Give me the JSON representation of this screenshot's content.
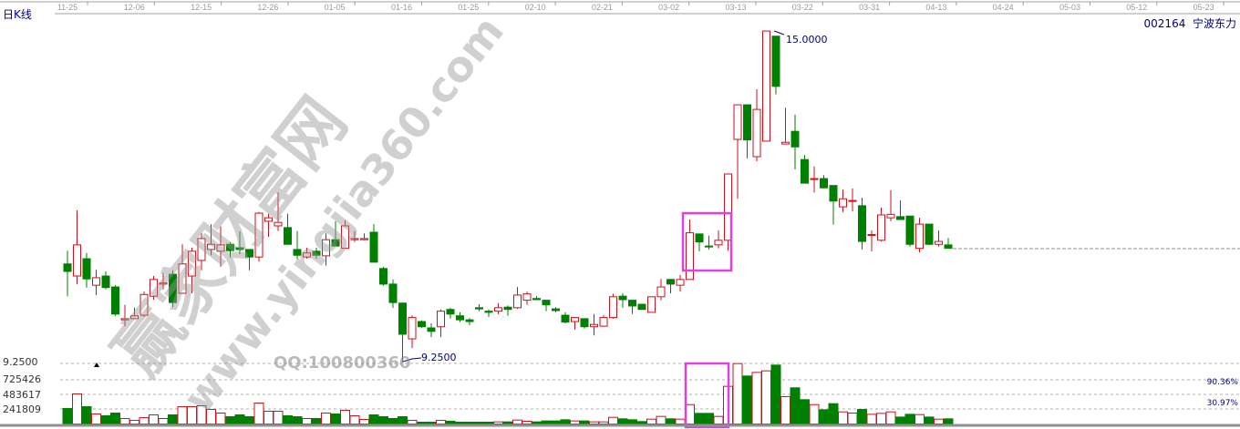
{
  "header": {
    "period_label": "日K线",
    "stock_code": "002164",
    "stock_name": "宁波东力",
    "date_ticks": [
      "11-25",
      "12-06",
      "12-15",
      "12-26",
      "01-05",
      "01-16",
      "01-25",
      "02-10",
      "02-21",
      "03-02",
      "03-13",
      "03-22",
      "03-31",
      "04-13",
      "04-24",
      "05-03",
      "05-12",
      "05-23"
    ]
  },
  "price_panel": {
    "max_label": "15.0000",
    "min_label": "9.2500",
    "left_axis_label": "9.2500"
  },
  "volume_panel": {
    "axis_labels": [
      "725426",
      "483617",
      "241809"
    ],
    "right_labels": [
      "90.36%",
      "30.97%"
    ]
  },
  "watermark": {
    "site_name": "赢家财富网",
    "url": "www.yingjia360.com",
    "qq": "QQ:100800360"
  },
  "colors": {
    "up": "#d0101a",
    "down": "#008000",
    "highlight": "#e040e0",
    "text_blue": "#000080"
  },
  "chart_data": {
    "type": "candlestick",
    "ohlc_order": [
      "open",
      "high",
      "low",
      "close"
    ],
    "candles": [
      [
        10.96,
        11.19,
        10.4,
        10.83
      ],
      [
        10.75,
        11.89,
        10.61,
        11.29
      ],
      [
        11.05,
        11.15,
        10.55,
        10.7
      ],
      [
        10.59,
        10.86,
        10.42,
        10.72
      ],
      [
        10.75,
        10.83,
        10.52,
        10.55
      ],
      [
        10.56,
        10.59,
        10.06,
        10.09
      ],
      [
        9.99,
        10.25,
        9.88,
        10.01
      ],
      [
        10.01,
        10.2,
        10.01,
        10.06
      ],
      [
        10.07,
        10.48,
        10.04,
        10.43
      ],
      [
        10.4,
        10.75,
        10.34,
        10.69
      ],
      [
        10.61,
        10.8,
        10.52,
        10.63
      ],
      [
        10.78,
        10.85,
        10.21,
        10.29
      ],
      [
        10.45,
        11.3,
        10.45,
        10.96
      ],
      [
        10.75,
        11.24,
        10.45,
        11.18
      ],
      [
        11.02,
        11.49,
        10.85,
        11.4
      ],
      [
        11.21,
        11.65,
        11.11,
        11.3
      ],
      [
        11.18,
        11.61,
        10.91,
        11.29
      ],
      [
        11.3,
        11.34,
        11.07,
        11.19
      ],
      [
        11.24,
        11.53,
        11.13,
        11.21
      ],
      [
        11.21,
        11.21,
        10.85,
        11.08
      ],
      [
        11.08,
        11.86,
        11.0,
        11.84
      ],
      [
        11.7,
        11.83,
        11.43,
        11.76
      ],
      [
        11.62,
        12.2,
        11.53,
        11.68
      ],
      [
        11.59,
        11.83,
        11.3,
        11.3
      ],
      [
        11.21,
        11.53,
        11.04,
        11.11
      ],
      [
        11.08,
        11.24,
        11.05,
        11.15
      ],
      [
        11.18,
        11.24,
        11.05,
        11.11
      ],
      [
        11.1,
        11.49,
        10.93,
        11.38
      ],
      [
        11.38,
        11.7,
        11.27,
        11.27
      ],
      [
        11.23,
        11.72,
        11.23,
        11.62
      ],
      [
        11.38,
        11.53,
        11.34,
        11.4
      ],
      [
        11.38,
        11.49,
        11.37,
        11.4
      ],
      [
        11.51,
        11.65,
        10.99,
        10.99
      ],
      [
        10.88,
        10.91,
        10.58,
        10.61
      ],
      [
        10.61,
        10.69,
        10.2,
        10.29
      ],
      [
        10.28,
        10.29,
        9.25,
        9.74
      ],
      [
        9.66,
        10.07,
        9.5,
        10.03
      ],
      [
        9.96,
        9.98,
        9.85,
        9.87
      ],
      [
        9.85,
        9.93,
        9.69,
        9.79
      ],
      [
        9.87,
        10.17,
        9.69,
        10.14
      ],
      [
        10.17,
        10.2,
        10.01,
        10.09
      ],
      [
        10.06,
        10.12,
        9.95,
        9.99
      ],
      [
        9.99,
        10.02,
        9.9,
        9.96
      ],
      [
        10.2,
        10.26,
        10.14,
        10.18
      ],
      [
        10.14,
        10.17,
        10.04,
        10.12
      ],
      [
        10.14,
        10.28,
        10.09,
        10.2
      ],
      [
        10.21,
        10.24,
        10.06,
        10.17
      ],
      [
        10.2,
        10.56,
        10.18,
        10.42
      ],
      [
        10.33,
        10.48,
        10.25,
        10.44
      ],
      [
        10.36,
        10.4,
        10.33,
        10.34
      ],
      [
        10.33,
        10.33,
        10.14,
        10.25
      ],
      [
        10.18,
        10.21,
        10.12,
        10.15
      ],
      [
        10.07,
        10.12,
        9.93,
        9.95
      ],
      [
        9.96,
        10.03,
        9.82,
        10.03
      ],
      [
        10.01,
        10.01,
        9.84,
        9.87
      ],
      [
        9.87,
        10.09,
        9.72,
        9.91
      ],
      [
        9.88,
        10.07,
        9.87,
        10.03
      ],
      [
        10.03,
        10.44,
        10.01,
        10.39
      ],
      [
        10.4,
        10.45,
        10.2,
        10.34
      ],
      [
        10.33,
        10.33,
        10.09,
        10.23
      ],
      [
        10.26,
        10.26,
        10.17,
        10.17
      ],
      [
        10.12,
        10.39,
        10.12,
        10.39
      ],
      [
        10.39,
        10.7,
        10.33,
        10.56
      ],
      [
        10.69,
        10.69,
        10.45,
        10.61
      ],
      [
        10.59,
        10.77,
        10.48,
        10.69
      ],
      [
        10.69,
        11.73,
        10.69,
        11.5
      ],
      [
        11.48,
        11.48,
        11.18,
        11.34
      ],
      [
        11.27,
        11.45,
        11.21,
        11.26
      ],
      [
        11.29,
        11.54,
        11.23,
        11.37
      ],
      [
        11.37,
        12.52,
        11.19,
        12.52
      ],
      [
        13.12,
        13.72,
        12.09,
        13.72
      ],
      [
        13.72,
        13.72,
        12.79,
        13.11
      ],
      [
        12.82,
        13.99,
        12.74,
        13.64
      ],
      [
        13.09,
        15.0,
        13.09,
        15.0
      ],
      [
        14.91,
        14.91,
        13.9,
        14.04
      ],
      [
        13.04,
        13.67,
        13.04,
        13.07
      ],
      [
        13.26,
        13.55,
        12.6,
        12.99
      ],
      [
        12.77,
        12.85,
        12.36,
        12.36
      ],
      [
        12.43,
        12.65,
        12.2,
        12.44
      ],
      [
        12.44,
        12.5,
        12.27,
        12.28
      ],
      [
        12.32,
        12.32,
        11.64,
        12.05
      ],
      [
        11.95,
        12.25,
        11.86,
        12.09
      ],
      [
        12.05,
        12.27,
        11.87,
        12.06
      ],
      [
        11.97,
        12.11,
        11.21,
        11.35
      ],
      [
        11.46,
        11.54,
        11.18,
        11.47
      ],
      [
        11.37,
        11.94,
        11.35,
        11.81
      ],
      [
        11.76,
        12.24,
        11.7,
        11.82
      ],
      [
        11.78,
        12.06,
        11.73,
        11.73
      ],
      [
        11.79,
        11.79,
        11.26,
        11.3
      ],
      [
        11.23,
        11.76,
        11.16,
        11.65
      ],
      [
        11.65,
        11.65,
        11.29,
        11.3
      ],
      [
        11.3,
        11.54,
        11.26,
        11.35
      ],
      [
        11.29,
        11.41,
        11.23,
        11.23
      ]
    ],
    "volumes": [
      249000,
      484000,
      278000,
      161000,
      132000,
      176000,
      88000,
      59000,
      103000,
      147000,
      88000,
      147000,
      278000,
      278000,
      293000,
      234000,
      176000,
      117000,
      147000,
      117000,
      337000,
      205000,
      205000,
      132000,
      117000,
      88000,
      88000,
      176000,
      161000,
      220000,
      132000,
      73000,
      147000,
      117000,
      88000,
      117000,
      59000,
      29000,
      29000,
      59000,
      44000,
      29000,
      29000,
      29000,
      29000,
      34000,
      34000,
      63000,
      44000,
      34000,
      49000,
      49000,
      68000,
      49000,
      49000,
      34000,
      34000,
      107000,
      83000,
      68000,
      39000,
      78000,
      122000,
      83000,
      78000,
      312000,
      171000,
      171000,
      122000,
      606000,
      972000,
      772000,
      830000,
      855000,
      948000,
      440000,
      582000,
      391000,
      312000,
      229000,
      327000,
      195000,
      176000,
      234000,
      156000,
      171000,
      195000,
      112000,
      156000,
      151000,
      112000,
      78000,
      83000
    ],
    "price_ylim": [
      9.25,
      15.0
    ],
    "volume_ticks": [
      241809,
      483617,
      725426
    ],
    "highlighted_candles": [
      66,
      69
    ]
  }
}
